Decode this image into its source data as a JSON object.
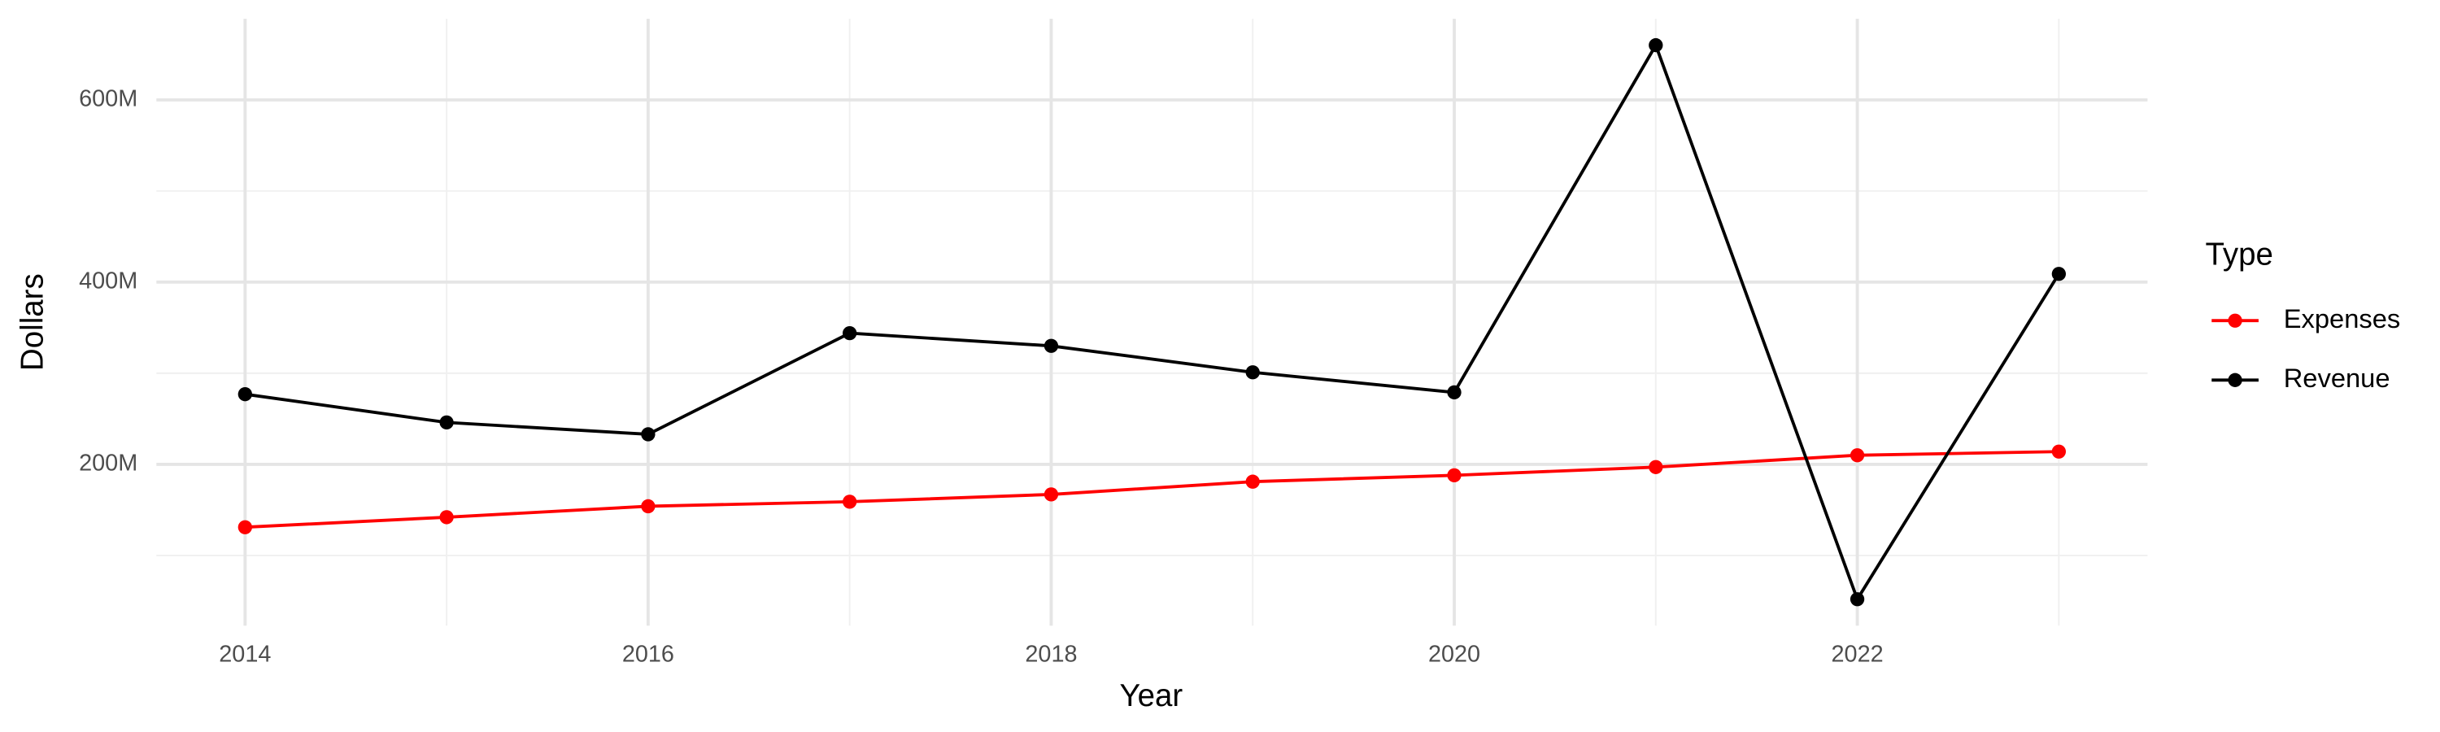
{
  "chart_data": {
    "type": "line",
    "x_label": "Year",
    "y_label": "Dollars",
    "legend_title": "Type",
    "legend_position": "right",
    "grid": true,
    "x": [
      2014,
      2015,
      2016,
      2017,
      2018,
      2019,
      2020,
      2021,
      2022,
      2023
    ],
    "series": [
      {
        "name": "Expenses",
        "color": "#ff0000",
        "values": [
          131000000,
          142000000,
          154000000,
          159000000,
          167000000,
          181000000,
          188000000,
          197000000,
          210000000,
          214000000
        ]
      },
      {
        "name": "Revenue",
        "color": "#000000",
        "values": [
          277000000,
          246000000,
          233000000,
          344000000,
          330000000,
          301000000,
          279000000,
          660000000,
          52000000,
          409000000
        ]
      }
    ],
    "xlim": [
      2013.56,
      2023.44
    ],
    "xticks": [
      2014,
      2016,
      2018,
      2020,
      2022
    ],
    "x_minor_ticks": [
      2015,
      2017,
      2019,
      2021,
      2023
    ],
    "ylim": [
      23000000,
      689000000
    ],
    "yticks": [
      {
        "value": 200000000,
        "label": "200M"
      },
      {
        "value": 400000000,
        "label": "400M"
      },
      {
        "value": 600000000,
        "label": "600M"
      }
    ],
    "y_minor_ticks": [
      100000000,
      300000000,
      500000000
    ]
  }
}
